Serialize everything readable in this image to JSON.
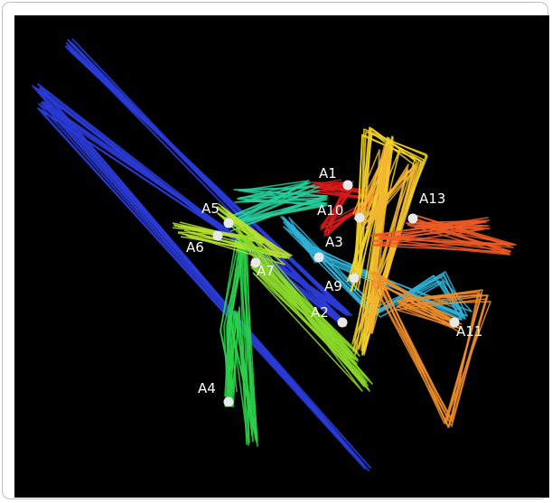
{
  "colors": {
    "background": "#000000",
    "node": "#e8e8e8",
    "label": "#ffffff"
  },
  "nodes": [
    {
      "id": "A1",
      "label": "A1",
      "color": "#d81b1b"
    },
    {
      "id": "A2",
      "label": "A2",
      "color": "#2a3bd6"
    },
    {
      "id": "A3",
      "label": "A3",
      "color": "#2fb3d8"
    },
    {
      "id": "A4",
      "label": "A4",
      "color": "#2bd14a"
    },
    {
      "id": "A5",
      "label": "A5",
      "color": "#26cf9a"
    },
    {
      "id": "A6",
      "label": "A6",
      "color": "#b6e02f"
    },
    {
      "id": "A7",
      "label": "A7",
      "color": "#8bd82a"
    },
    {
      "id": "A9",
      "label": "A9",
      "color": "#f2d22a"
    },
    {
      "id": "A10",
      "label": "A10",
      "color": "#f5b531"
    },
    {
      "id": "A11",
      "label": "A11",
      "color": "#ef8d2a"
    },
    {
      "id": "A13",
      "label": "A13",
      "color": "#ee5a26"
    }
  ]
}
